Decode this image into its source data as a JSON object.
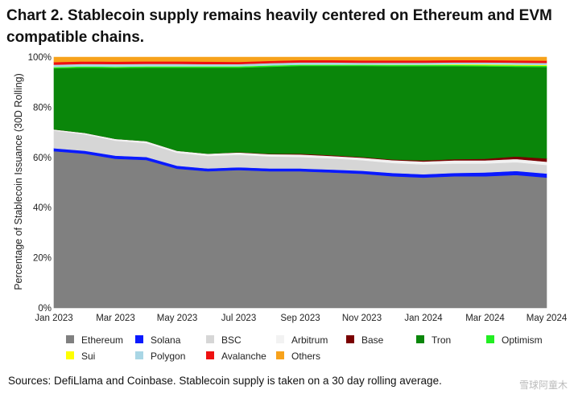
{
  "title": "Chart 2. Stablecoin supply remains heavily centered on Ethereum and EVM compatible chains.",
  "source": "Sources: DefiLlama and Coinbase. Stablecoin supply is taken on a 30 day rolling average.",
  "watermark": "雪球阿童木",
  "chart_data": {
    "type": "area",
    "stacked": true,
    "normalized": true,
    "ylabel": "Percentage of Stablecoin Issuance (30D Rolling)",
    "xlabel": "",
    "ylim": [
      0,
      100
    ],
    "yticks": [
      "0%",
      "20%",
      "40%",
      "60%",
      "80%",
      "100%"
    ],
    "xticks": [
      "Jan 2023",
      "Mar 2023",
      "May 2023",
      "Jul 2023",
      "Sep 2023",
      "Nov 2023",
      "Jan 2024",
      "Mar 2024",
      "May 2024"
    ],
    "legend_position": "bottom",
    "x": [
      "Jan 2023",
      "Feb 2023",
      "Mar 2023",
      "Apr 2023",
      "May 2023",
      "Jun 2023",
      "Jul 2023",
      "Aug 2023",
      "Sep 2023",
      "Oct 2023",
      "Nov 2023",
      "Dec 2023",
      "Jan 2024",
      "Feb 2024",
      "Mar 2024",
      "Apr 2024",
      "May 2024"
    ],
    "series": [
      {
        "name": "Ethereum",
        "color": "#808080",
        "values": [
          62.5,
          61.5,
          59.5,
          59.0,
          55.5,
          54.5,
          55.0,
          54.5,
          54.5,
          54.0,
          53.5,
          52.5,
          52.0,
          52.5,
          52.5,
          53.0,
          52.0
        ]
      },
      {
        "name": "Solana",
        "color": "#0a1aff",
        "values": [
          1.2,
          1.2,
          1.2,
          1.2,
          1.2,
          1.1,
          1.1,
          1.1,
          1.1,
          1.2,
          1.2,
          1.3,
          1.3,
          1.3,
          1.5,
          1.6,
          1.6
        ]
      },
      {
        "name": "BSC",
        "color": "#d6d6d6",
        "values": [
          7.0,
          6.5,
          6.0,
          5.5,
          5.2,
          5.0,
          5.0,
          4.8,
          4.6,
          4.4,
          4.2,
          4.0,
          3.9,
          3.8,
          3.6,
          3.5,
          3.4
        ]
      },
      {
        "name": "Arbitrum",
        "color": "#f2f2f2",
        "values": [
          0.5,
          0.6,
          0.7,
          0.8,
          0.8,
          0.9,
          0.9,
          0.9,
          1.0,
          1.0,
          1.0,
          1.1,
          1.2,
          1.2,
          1.2,
          1.3,
          1.3
        ]
      },
      {
        "name": "Base",
        "color": "#7a0000",
        "values": [
          0.0,
          0.0,
          0.0,
          0.0,
          0.0,
          0.0,
          0.1,
          0.2,
          0.3,
          0.3,
          0.3,
          0.3,
          0.4,
          0.5,
          0.7,
          1.0,
          1.3
        ]
      },
      {
        "name": "Tron",
        "color": "#0a860a",
        "values": [
          24.3,
          26.0,
          28.3,
          29.3,
          33.1,
          34.3,
          33.7,
          34.7,
          35.0,
          35.6,
          36.3,
          37.2,
          37.6,
          37.1,
          36.8,
          35.8,
          36.5
        ]
      },
      {
        "name": "Optimism",
        "color": "#22ee22",
        "values": [
          0.5,
          0.5,
          0.5,
          0.5,
          0.5,
          0.5,
          0.5,
          0.5,
          0.5,
          0.5,
          0.5,
          0.5,
          0.5,
          0.5,
          0.5,
          0.5,
          0.5
        ]
      },
      {
        "name": "Sui",
        "color": "#ffff00",
        "values": [
          0.0,
          0.0,
          0.0,
          0.0,
          0.0,
          0.0,
          0.0,
          0.0,
          0.0,
          0.0,
          0.0,
          0.1,
          0.1,
          0.2,
          0.3,
          0.3,
          0.3
        ]
      },
      {
        "name": "Polygon",
        "color": "#a9d6e5",
        "values": [
          1.0,
          1.0,
          1.0,
          1.0,
          1.0,
          0.9,
          0.9,
          0.9,
          0.9,
          0.9,
          0.8,
          0.8,
          0.8,
          0.8,
          0.8,
          0.8,
          0.8
        ]
      },
      {
        "name": "Avalanche",
        "color": "#ee1111",
        "values": [
          1.0,
          1.0,
          1.0,
          1.0,
          1.0,
          1.0,
          0.9,
          0.9,
          0.9,
          0.9,
          0.9,
          0.9,
          0.9,
          0.9,
          0.9,
          0.9,
          0.9
        ]
      },
      {
        "name": "Others",
        "color": "#f7a21b",
        "values": [
          2.0,
          1.7,
          1.8,
          1.7,
          1.7,
          1.8,
          1.9,
          1.5,
          1.2,
          1.2,
          1.3,
          1.3,
          1.3,
          1.2,
          1.2,
          1.3,
          1.4
        ]
      }
    ]
  }
}
